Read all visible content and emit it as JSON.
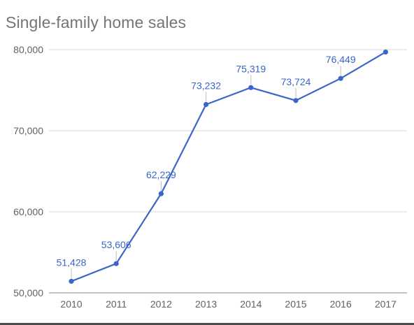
{
  "chart_data": {
    "type": "line",
    "title": "Single-family home sales",
    "xlabel": "",
    "ylabel": "",
    "categories": [
      "2010",
      "2011",
      "2012",
      "2013",
      "2014",
      "2015",
      "2016",
      "2017"
    ],
    "series": [
      {
        "values": [
          51428,
          53606,
          62229,
          73232,
          75319,
          73724,
          76449,
          79700
        ],
        "data_labels": [
          "51,428",
          "53,606",
          "62,229",
          "73,232",
          "75,319",
          "73,724",
          "76,449",
          ""
        ]
      }
    ],
    "ylim": [
      50000,
      80000
    ],
    "yticks": [
      50000,
      60000,
      70000,
      80000
    ],
    "ytick_labels": [
      "50,000",
      "60,000",
      "70,000",
      "80,000"
    ],
    "grid": true,
    "legend": "none",
    "colors": {
      "line": "#3a66c9",
      "data_label": "#3a66c9",
      "grid": "#d9d9d9",
      "tick_label": "#616161",
      "title": "#757575"
    }
  }
}
